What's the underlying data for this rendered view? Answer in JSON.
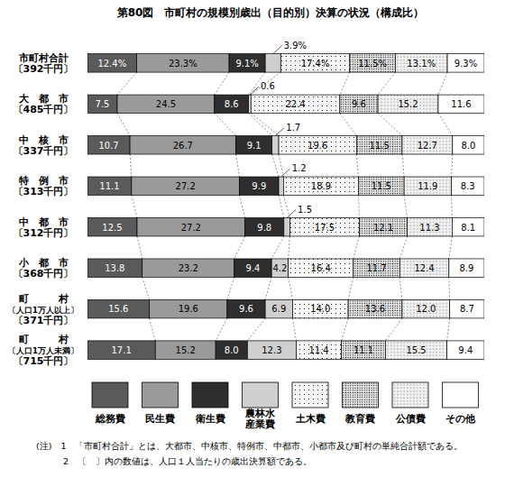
{
  "chart_data": {
    "type": "bar",
    "title": "第80図　市町村の規模別歳出（目的別）決算の状況（構成比）",
    "orientation": "horizontal",
    "stacked": true,
    "data_labels": true,
    "tick_labels": "y",
    "legend": "bottom",
    "xlim": [
      0,
      100
    ],
    "categories": [
      "市町村合計\n〔392千円〕",
      "大　都　市\n〔485千円〕",
      "中　核　市\n〔337千円〕",
      "特　例　市\n〔313千円〕",
      "中　都　市\n〔312千円〕",
      "小　都　市\n〔368千円〕",
      "町　　　村\n〔人口1万人以上〕\n〔371千円〕",
      "町　　　村\n〔人口1万人未満〕\n〔715千円〕"
    ],
    "series": [
      {
        "name": "総務費",
        "color": "#5a5a5a",
        "values": [
          12.4,
          7.5,
          10.7,
          11.1,
          12.5,
          13.8,
          15.6,
          17.1
        ],
        "value_labels": [
          "12.4%",
          "7.5",
          "10.7",
          "11.1",
          "12.5",
          "13.8",
          "15.6",
          "17.1"
        ]
      },
      {
        "name": "民生費",
        "color": "#9a9a9a",
        "values": [
          23.3,
          24.5,
          26.7,
          27.2,
          27.2,
          23.2,
          19.6,
          15.2
        ],
        "value_labels": [
          "23.3%",
          "24.5",
          "26.7",
          "27.2",
          "27.2",
          "23.2",
          "19.6",
          "15.2"
        ]
      },
      {
        "name": "衛生費",
        "color": "#2e2e2e",
        "values": [
          9.1,
          8.6,
          9.1,
          9.9,
          9.8,
          9.4,
          9.6,
          8.0
        ],
        "value_labels": [
          "9.1%",
          "8.6",
          "9.1",
          "9.9",
          "9.8",
          "9.4",
          "9.6",
          "8.0"
        ]
      },
      {
        "name": "農林水\n産業費",
        "color": "#cfcfcf",
        "values": [
          3.9,
          0.6,
          1.7,
          1.2,
          1.5,
          4.2,
          6.9,
          12.3
        ],
        "value_labels": [
          "3.9%",
          "0.6",
          "1.7",
          "1.2",
          "1.5",
          "4.2",
          "6.9",
          "12.3"
        ]
      },
      {
        "name": "土木費",
        "color": "#f7f7f7",
        "values": [
          17.4,
          22.4,
          19.6,
          18.9,
          17.5,
          16.4,
          14.0,
          11.4
        ],
        "value_labels": [
          "17.4%",
          "22.4",
          "19.6",
          "18.9",
          "17.5",
          "16.4",
          "14.0",
          "11.4"
        ]
      },
      {
        "name": "教育費",
        "color": "#e6e6e6",
        "values": [
          11.5,
          9.6,
          11.5,
          11.5,
          12.1,
          11.7,
          13.6,
          11.1
        ],
        "value_labels": [
          "11.5%",
          "9.6",
          "11.5",
          "11.5",
          "12.1",
          "11.7",
          "13.6",
          "11.1"
        ]
      },
      {
        "name": "公債費",
        "color": "#f2f2f2",
        "values": [
          13.1,
          15.2,
          12.7,
          11.9,
          11.3,
          12.4,
          12.0,
          15.5
        ],
        "value_labels": [
          "13.1%",
          "15.2",
          "12.7",
          "11.9",
          "11.3",
          "12.4",
          "12.0",
          "15.5"
        ]
      },
      {
        "name": "その他",
        "color": "#ffffff",
        "values": [
          9.3,
          11.6,
          8.0,
          8.3,
          8.1,
          8.9,
          8.7,
          9.4
        ],
        "value_labels": [
          "9.3%",
          "11.6",
          "8.0",
          "8.3",
          "8.1",
          "8.9",
          "8.7",
          "9.4"
        ]
      }
    ],
    "annotations": [
      "(注)　1　「市町村合計」とは、大都市、中核市、特例市、中都市、小都市及び町村の単純合計額である。",
      "　　　2　〔　〕内の数値は、人口１人当たりの歳出決算額である。"
    ]
  }
}
